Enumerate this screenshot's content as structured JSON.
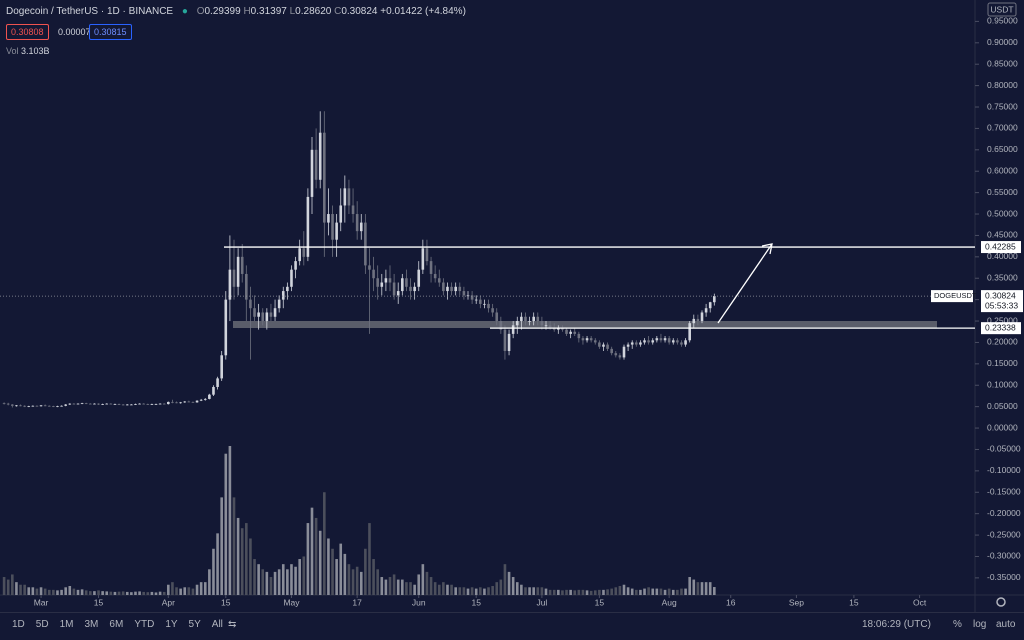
{
  "header": {
    "symbol": "Dogecoin / TetherUS · 1D · BINANCE",
    "o_label": "O",
    "open": "0.29399",
    "h_label": "H",
    "high": "0.31397",
    "l_label": "L",
    "low": "0.28620",
    "c_label": "C",
    "close": "0.30824",
    "change": "+0.01422 (+4.84%)",
    "sell": "0.30808",
    "spread": "0.00007",
    "buy": "0.30815",
    "vol_label": "Vol",
    "vol": "3.103B",
    "currency": "USDT"
  },
  "toolbar": {
    "ranges": [
      "1D",
      "5D",
      "1M",
      "3M",
      "6M",
      "YTD",
      "1Y",
      "5Y",
      "All"
    ],
    "clock": "18:06:29 (UTC)",
    "percent": "%",
    "log": "log",
    "auto": "auto"
  },
  "chart_data": {
    "type": "candlestick",
    "up_color": "#d1d4dc",
    "down_color": "#6f7280",
    "volume_up_color": "#8a8d99",
    "volume_down_color": "#4c4f5c",
    "xlim": [
      -1,
      236.5
    ],
    "ylim": [
      -0.39,
      1.0
    ],
    "xticks": [
      {
        "value": 9,
        "label": "Mar"
      },
      {
        "value": 23,
        "label": "15"
      },
      {
        "value": 40,
        "label": "Apr"
      },
      {
        "value": 54,
        "label": "15"
      },
      {
        "value": 70,
        "label": "May"
      },
      {
        "value": 86,
        "label": "17"
      },
      {
        "value": 101,
        "label": "Jun"
      },
      {
        "value": 115,
        "label": "15"
      },
      {
        "value": 131,
        "label": "Jul"
      },
      {
        "value": 145,
        "label": "15"
      },
      {
        "value": 162,
        "label": "Aug"
      },
      {
        "value": 177,
        "label": "16"
      },
      {
        "value": 193,
        "label": "Sep"
      },
      {
        "value": 207,
        "label": "15"
      },
      {
        "value": 223,
        "label": "Oct"
      }
    ],
    "yticks": [
      {
        "value": 0.95,
        "label": "0.95000"
      },
      {
        "value": 0.9,
        "label": "0.90000"
      },
      {
        "value": 0.85,
        "label": "0.85000"
      },
      {
        "value": 0.8,
        "label": "0.80000"
      },
      {
        "value": 0.75,
        "label": "0.75000"
      },
      {
        "value": 0.7,
        "label": "0.70000"
      },
      {
        "value": 0.65,
        "label": "0.65000"
      },
      {
        "value": 0.6,
        "label": "0.60000"
      },
      {
        "value": 0.55,
        "label": "0.55000"
      },
      {
        "value": 0.5,
        "label": "0.50000"
      },
      {
        "value": 0.45,
        "label": "0.45000"
      },
      {
        "value": 0.4,
        "label": "0.40000"
      },
      {
        "value": 0.35,
        "label": "0.35000"
      },
      {
        "value": 0.3,
        "label": "0.30000"
      },
      {
        "value": 0.25,
        "label": "0.25000"
      },
      {
        "value": 0.2,
        "label": "0.20000"
      },
      {
        "value": 0.15,
        "label": "0.15000"
      },
      {
        "value": 0.1,
        "label": "0.10000"
      },
      {
        "value": 0.05,
        "label": "0.05000"
      },
      {
        "value": 0,
        "label": "0.00000"
      },
      {
        "value": -0.05,
        "label": "-0.05000"
      },
      {
        "value": -0.1,
        "label": "-0.10000"
      },
      {
        "value": -0.15,
        "label": "-0.15000"
      },
      {
        "value": -0.2,
        "label": "-0.20000"
      },
      {
        "value": -0.25,
        "label": "-0.25000"
      },
      {
        "value": -0.3,
        "label": "-0.30000"
      },
      {
        "value": -0.35,
        "label": "-0.35000"
      }
    ],
    "levels": [
      {
        "value": 0.42285,
        "label": "0.42285"
      },
      {
        "value": 0.23338,
        "label": "0.23338"
      }
    ],
    "last_price": {
      "symbol": "DOGEUSDT",
      "value": 0.30824,
      "label": "0.30824",
      "countdown": "05:53:33"
    },
    "candles": [
      [
        0.058,
        0.06,
        0.055,
        0.057,
        7
      ],
      [
        0.057,
        0.059,
        0.053,
        0.055,
        6
      ],
      [
        0.055,
        0.056,
        0.048,
        0.052,
        8
      ],
      [
        0.052,
        0.054,
        0.05,
        0.053,
        5
      ],
      [
        0.053,
        0.055,
        0.051,
        0.052,
        4
      ],
      [
        0.052,
        0.053,
        0.049,
        0.05,
        4
      ],
      [
        0.05,
        0.052,
        0.049,
        0.051,
        3
      ],
      [
        0.051,
        0.053,
        0.05,
        0.052,
        3
      ],
      [
        0.052,
        0.053,
        0.05,
        0.051,
        2.5
      ],
      [
        0.051,
        0.054,
        0.05,
        0.053,
        3
      ],
      [
        0.053,
        0.055,
        0.051,
        0.052,
        2.5
      ],
      [
        0.052,
        0.053,
        0.05,
        0.051,
        2
      ],
      [
        0.051,
        0.052,
        0.049,
        0.05,
        2
      ],
      [
        0.05,
        0.052,
        0.049,
        0.051,
        1.8
      ],
      [
        0.051,
        0.053,
        0.05,
        0.052,
        2
      ],
      [
        0.052,
        0.056,
        0.051,
        0.055,
        3
      ],
      [
        0.055,
        0.058,
        0.054,
        0.057,
        3.5
      ],
      [
        0.057,
        0.058,
        0.055,
        0.056,
        2.5
      ],
      [
        0.056,
        0.058,
        0.055,
        0.057,
        2
      ],
      [
        0.057,
        0.059,
        0.056,
        0.058,
        2.2
      ],
      [
        0.058,
        0.059,
        0.056,
        0.057,
        1.8
      ],
      [
        0.057,
        0.058,
        0.055,
        0.056,
        1.5
      ],
      [
        0.056,
        0.058,
        0.055,
        0.057,
        1.5
      ],
      [
        0.057,
        0.058,
        0.054,
        0.055,
        1.8
      ],
      [
        0.055,
        0.057,
        0.054,
        0.056,
        1.5
      ],
      [
        0.056,
        0.058,
        0.055,
        0.057,
        1.4
      ],
      [
        0.057,
        0.058,
        0.055,
        0.056,
        1.3
      ],
      [
        0.056,
        0.057,
        0.055,
        0.056,
        1.2
      ],
      [
        0.056,
        0.057,
        0.054,
        0.055,
        1.3
      ],
      [
        0.055,
        0.056,
        0.053,
        0.054,
        1.4
      ],
      [
        0.054,
        0.056,
        0.053,
        0.055,
        1.2
      ],
      [
        0.055,
        0.056,
        0.054,
        0.055,
        1.1
      ],
      [
        0.055,
        0.057,
        0.054,
        0.056,
        1.3
      ],
      [
        0.056,
        0.058,
        0.055,
        0.057,
        1.4
      ],
      [
        0.057,
        0.058,
        0.055,
        0.056,
        1.2
      ],
      [
        0.056,
        0.057,
        0.054,
        0.055,
        1.1
      ],
      [
        0.055,
        0.057,
        0.054,
        0.056,
        1.2
      ],
      [
        0.056,
        0.057,
        0.055,
        0.056,
        1.0
      ],
      [
        0.056,
        0.058,
        0.055,
        0.057,
        1.3
      ],
      [
        0.057,
        0.058,
        0.055,
        0.056,
        1.2
      ],
      [
        0.056,
        0.062,
        0.055,
        0.061,
        4
      ],
      [
        0.061,
        0.066,
        0.058,
        0.06,
        5
      ],
      [
        0.06,
        0.062,
        0.058,
        0.059,
        3
      ],
      [
        0.059,
        0.061,
        0.057,
        0.06,
        2.5
      ],
      [
        0.06,
        0.063,
        0.059,
        0.062,
        3
      ],
      [
        0.062,
        0.064,
        0.06,
        0.061,
        3
      ],
      [
        0.061,
        0.062,
        0.059,
        0.06,
        2.5
      ],
      [
        0.06,
        0.065,
        0.059,
        0.064,
        4
      ],
      [
        0.064,
        0.068,
        0.063,
        0.066,
        5
      ],
      [
        0.066,
        0.07,
        0.064,
        0.068,
        5
      ],
      [
        0.068,
        0.08,
        0.067,
        0.078,
        10
      ],
      [
        0.078,
        0.1,
        0.075,
        0.096,
        18
      ],
      [
        0.096,
        0.12,
        0.09,
        0.116,
        24
      ],
      [
        0.116,
        0.18,
        0.11,
        0.17,
        38
      ],
      [
        0.17,
        0.32,
        0.16,
        0.3,
        55
      ],
      [
        0.3,
        0.45,
        0.25,
        0.37,
        58
      ],
      [
        0.37,
        0.44,
        0.3,
        0.33,
        38
      ],
      [
        0.33,
        0.42,
        0.31,
        0.4,
        30
      ],
      [
        0.4,
        0.43,
        0.34,
        0.36,
        26
      ],
      [
        0.36,
        0.38,
        0.25,
        0.3,
        28
      ],
      [
        0.3,
        0.33,
        0.16,
        0.28,
        22
      ],
      [
        0.28,
        0.31,
        0.25,
        0.26,
        14
      ],
      [
        0.26,
        0.29,
        0.23,
        0.27,
        12
      ],
      [
        0.27,
        0.28,
        0.24,
        0.25,
        10
      ],
      [
        0.25,
        0.28,
        0.23,
        0.27,
        9
      ],
      [
        0.27,
        0.29,
        0.25,
        0.26,
        7
      ],
      [
        0.26,
        0.3,
        0.25,
        0.28,
        9
      ],
      [
        0.28,
        0.31,
        0.27,
        0.3,
        10
      ],
      [
        0.3,
        0.33,
        0.28,
        0.32,
        12
      ],
      [
        0.32,
        0.34,
        0.3,
        0.33,
        10
      ],
      [
        0.33,
        0.38,
        0.32,
        0.37,
        12
      ],
      [
        0.37,
        0.4,
        0.35,
        0.39,
        11
      ],
      [
        0.39,
        0.44,
        0.38,
        0.42,
        14
      ],
      [
        0.42,
        0.46,
        0.38,
        0.4,
        15
      ],
      [
        0.4,
        0.56,
        0.39,
        0.54,
        28
      ],
      [
        0.54,
        0.68,
        0.5,
        0.65,
        34
      ],
      [
        0.65,
        0.7,
        0.56,
        0.58,
        30
      ],
      [
        0.58,
        0.74,
        0.56,
        0.69,
        25
      ],
      [
        0.69,
        0.74,
        0.4,
        0.48,
        40
      ],
      [
        0.48,
        0.56,
        0.45,
        0.5,
        22
      ],
      [
        0.5,
        0.52,
        0.4,
        0.44,
        18
      ],
      [
        0.44,
        0.5,
        0.4,
        0.48,
        14
      ],
      [
        0.48,
        0.56,
        0.46,
        0.52,
        20
      ],
      [
        0.52,
        0.59,
        0.48,
        0.56,
        16
      ],
      [
        0.56,
        0.58,
        0.5,
        0.52,
        12
      ],
      [
        0.52,
        0.56,
        0.48,
        0.5,
        10
      ],
      [
        0.5,
        0.53,
        0.44,
        0.46,
        11
      ],
      [
        0.46,
        0.5,
        0.44,
        0.48,
        9
      ],
      [
        0.48,
        0.5,
        0.36,
        0.38,
        18
      ],
      [
        0.38,
        0.42,
        0.22,
        0.37,
        28
      ],
      [
        0.37,
        0.4,
        0.32,
        0.35,
        14
      ],
      [
        0.35,
        0.38,
        0.3,
        0.33,
        10
      ],
      [
        0.33,
        0.36,
        0.31,
        0.34,
        7
      ],
      [
        0.34,
        0.37,
        0.32,
        0.35,
        6
      ],
      [
        0.35,
        0.38,
        0.32,
        0.34,
        7
      ],
      [
        0.34,
        0.36,
        0.3,
        0.31,
        8
      ],
      [
        0.31,
        0.34,
        0.29,
        0.32,
        6
      ],
      [
        0.32,
        0.36,
        0.31,
        0.35,
        6
      ],
      [
        0.35,
        0.37,
        0.32,
        0.33,
        5
      ],
      [
        0.33,
        0.35,
        0.3,
        0.32,
        5
      ],
      [
        0.32,
        0.34,
        0.3,
        0.33,
        4
      ],
      [
        0.33,
        0.39,
        0.32,
        0.37,
        8
      ],
      [
        0.37,
        0.44,
        0.36,
        0.42,
        12
      ],
      [
        0.42,
        0.44,
        0.38,
        0.39,
        9
      ],
      [
        0.39,
        0.4,
        0.34,
        0.36,
        7
      ],
      [
        0.36,
        0.38,
        0.34,
        0.35,
        5
      ],
      [
        0.35,
        0.37,
        0.33,
        0.34,
        4
      ],
      [
        0.34,
        0.35,
        0.31,
        0.32,
        5
      ],
      [
        0.32,
        0.34,
        0.3,
        0.33,
        4
      ],
      [
        0.33,
        0.34,
        0.31,
        0.32,
        4
      ],
      [
        0.32,
        0.34,
        0.31,
        0.33,
        3
      ],
      [
        0.33,
        0.34,
        0.31,
        0.32,
        3
      ],
      [
        0.32,
        0.33,
        0.3,
        0.31,
        3
      ],
      [
        0.31,
        0.32,
        0.3,
        0.31,
        2.5
      ],
      [
        0.31,
        0.32,
        0.29,
        0.3,
        3
      ],
      [
        0.3,
        0.31,
        0.29,
        0.3,
        2.5
      ],
      [
        0.3,
        0.31,
        0.28,
        0.29,
        3
      ],
      [
        0.29,
        0.3,
        0.28,
        0.29,
        2.5
      ],
      [
        0.29,
        0.3,
        0.27,
        0.28,
        3
      ],
      [
        0.28,
        0.29,
        0.26,
        0.27,
        3.5
      ],
      [
        0.27,
        0.28,
        0.24,
        0.25,
        5
      ],
      [
        0.25,
        0.26,
        0.22,
        0.23,
        6
      ],
      [
        0.23,
        0.24,
        0.16,
        0.18,
        12
      ],
      [
        0.18,
        0.23,
        0.17,
        0.22,
        9
      ],
      [
        0.22,
        0.25,
        0.21,
        0.24,
        7
      ],
      [
        0.24,
        0.26,
        0.22,
        0.25,
        5
      ],
      [
        0.25,
        0.27,
        0.23,
        0.26,
        4
      ],
      [
        0.26,
        0.27,
        0.24,
        0.25,
        3
      ],
      [
        0.25,
        0.26,
        0.24,
        0.25,
        3
      ],
      [
        0.25,
        0.27,
        0.24,
        0.26,
        3
      ],
      [
        0.26,
        0.27,
        0.24,
        0.25,
        3
      ],
      [
        0.25,
        0.26,
        0.23,
        0.24,
        3
      ],
      [
        0.24,
        0.25,
        0.23,
        0.24,
        2.5
      ],
      [
        0.24,
        0.25,
        0.23,
        0.235,
        2
      ],
      [
        0.235,
        0.245,
        0.225,
        0.23,
        2
      ],
      [
        0.23,
        0.24,
        0.22,
        0.235,
        2
      ],
      [
        0.235,
        0.24,
        0.225,
        0.23,
        1.8
      ],
      [
        0.23,
        0.235,
        0.215,
        0.22,
        2
      ],
      [
        0.22,
        0.23,
        0.21,
        0.225,
        2
      ],
      [
        0.225,
        0.235,
        0.215,
        0.22,
        1.8
      ],
      [
        0.22,
        0.225,
        0.2,
        0.21,
        2
      ],
      [
        0.21,
        0.215,
        0.195,
        0.205,
        2
      ],
      [
        0.205,
        0.215,
        0.2,
        0.21,
        1.8
      ],
      [
        0.21,
        0.215,
        0.2,
        0.205,
        1.6
      ],
      [
        0.205,
        0.21,
        0.195,
        0.2,
        1.8
      ],
      [
        0.2,
        0.205,
        0.185,
        0.19,
        2
      ],
      [
        0.19,
        0.2,
        0.18,
        0.195,
        2
      ],
      [
        0.195,
        0.2,
        0.18,
        0.185,
        2.2
      ],
      [
        0.185,
        0.19,
        0.17,
        0.175,
        2.5
      ],
      [
        0.175,
        0.18,
        0.165,
        0.17,
        3
      ],
      [
        0.17,
        0.175,
        0.16,
        0.165,
        3.5
      ],
      [
        0.165,
        0.195,
        0.16,
        0.19,
        4
      ],
      [
        0.19,
        0.2,
        0.18,
        0.195,
        3
      ],
      [
        0.195,
        0.205,
        0.185,
        0.2,
        2.5
      ],
      [
        0.2,
        0.205,
        0.19,
        0.195,
        2
      ],
      [
        0.195,
        0.205,
        0.19,
        0.2,
        2
      ],
      [
        0.2,
        0.21,
        0.195,
        0.205,
        2.5
      ],
      [
        0.205,
        0.215,
        0.195,
        0.2,
        3
      ],
      [
        0.2,
        0.21,
        0.195,
        0.205,
        2.5
      ],
      [
        0.205,
        0.215,
        0.2,
        0.21,
        2.5
      ],
      [
        0.21,
        0.22,
        0.2,
        0.205,
        2.5
      ],
      [
        0.205,
        0.215,
        0.2,
        0.21,
        2
      ],
      [
        0.21,
        0.215,
        0.195,
        0.2,
        2.5
      ],
      [
        0.2,
        0.21,
        0.195,
        0.205,
        2
      ],
      [
        0.205,
        0.21,
        0.195,
        0.2,
        2
      ],
      [
        0.2,
        0.205,
        0.19,
        0.195,
        2.5
      ],
      [
        0.195,
        0.21,
        0.19,
        0.205,
        2.5
      ],
      [
        0.205,
        0.25,
        0.2,
        0.245,
        7
      ],
      [
        0.245,
        0.265,
        0.235,
        0.255,
        6
      ],
      [
        0.255,
        0.265,
        0.24,
        0.25,
        5
      ],
      [
        0.25,
        0.275,
        0.245,
        0.27,
        5
      ],
      [
        0.27,
        0.29,
        0.26,
        0.28,
        5
      ],
      [
        0.28,
        0.295,
        0.27,
        0.294,
        5
      ],
      [
        0.29399,
        0.31397,
        0.2862,
        0.30824,
        3.103
      ]
    ]
  }
}
